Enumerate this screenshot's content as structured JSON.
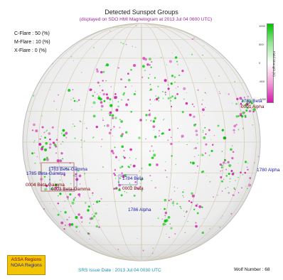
{
  "header": {
    "title": "Detected Sunspot Groups",
    "subtitle": "(displayed on SDO HMI Magnetogram at 2013 Jul 04 0600 UTC)"
  },
  "flare_probabilities": [
    {
      "label": "C-Flare",
      "value": "50 (%)"
    },
    {
      "label": "M-Flare",
      "value": "10 (%)"
    },
    {
      "label": "X-Flare",
      "value": "0 (%)"
    }
  ],
  "flare_text": [
    "C-Flare : 50 (%)",
    "M-Flare : 10 (%)",
    "X-Flare : 0 (%)"
  ],
  "regions": [
    {
      "noaa": "1781",
      "class": "Beta",
      "noaa_label": "1781 Beta",
      "assa_label": "0001 Alpha"
    },
    {
      "noaa": "1785",
      "class": "Beta-Gamma",
      "noaa_label": "1785 Beta-Gamma",
      "assa_label": "0004 Beta-Gamma"
    },
    {
      "noaa": "1783",
      "class": "Beta-Gamma",
      "noaa_label": "1783 Beta-Gamma",
      "assa_label": "0003 Beta-Gamma"
    },
    {
      "noaa": "1784",
      "class": "Beta",
      "noaa_label": "1784 Beta",
      "assa_label": "0002 Beta"
    },
    {
      "noaa": "1786",
      "class": "Alpha",
      "noaa_label": "1786 Alpha",
      "assa_label": ""
    },
    {
      "noaa": "1780",
      "class": "Alpha",
      "noaa_label": "1780 Alpha",
      "assa_label": ""
    }
  ],
  "colorbar": {
    "title": "Field Strength (G)",
    "ticks": [
      "1000",
      "500",
      "0",
      "-500",
      "-1000"
    ],
    "colors": {
      "positive": "#00c400",
      "negative": "#d11aa9"
    }
  },
  "legend": {
    "assa": "ASSA Regions",
    "noaa": "NOAA Regions",
    "colors": {
      "assa": "#7a0000",
      "noaa": "#1a1aa8",
      "background": "#f3c400"
    }
  },
  "footer": {
    "issue_date": "SRS Issue Date : 2013 Jul 04 0030 UTC",
    "wolf_number": "Wolf Number : 68"
  }
}
